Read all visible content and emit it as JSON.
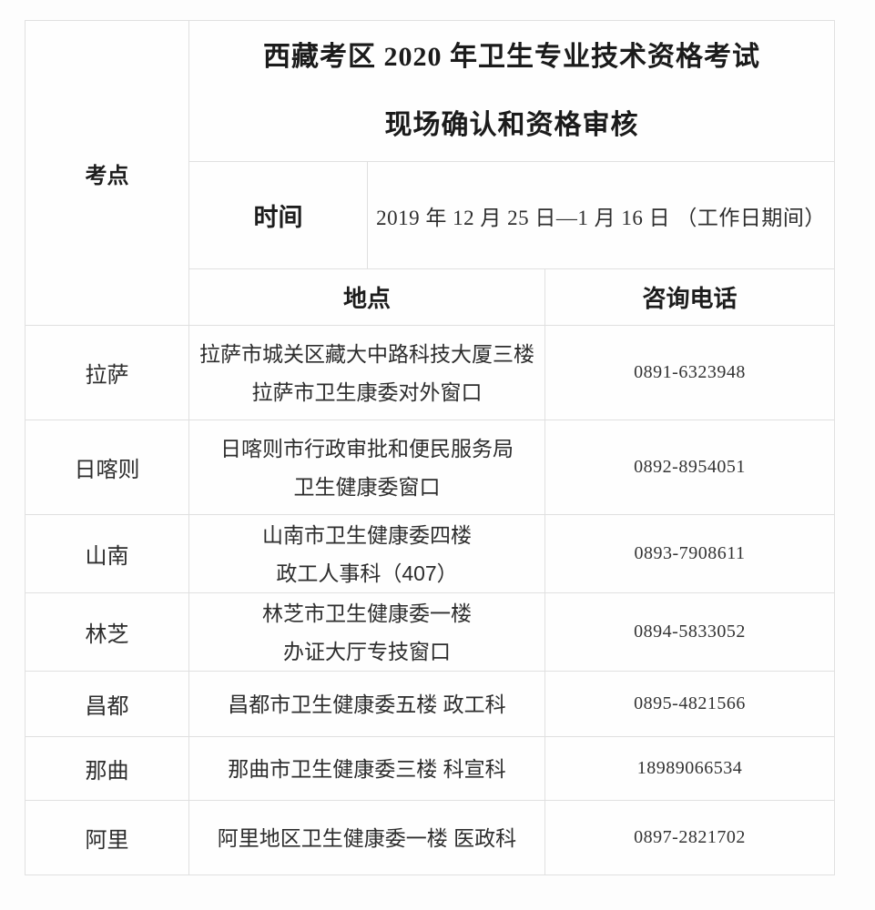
{
  "table": {
    "corner_header": "考点",
    "title_line1": "西藏考区 2020 年卫生专业技术资格考试",
    "title_line2": "现场确认和资格审核",
    "time_label": "时间",
    "time_value": "2019 年 12 月 25 日—1 月 16 日 （工作日期间）",
    "location_header": "地点",
    "phone_header": "咨询电话",
    "rows": [
      {
        "site": "拉萨",
        "address_lines": [
          "拉萨市城关区藏大中路科技大厦三楼",
          "拉萨市卫生康委对外窗口"
        ],
        "phone": "0891-6323948"
      },
      {
        "site": "日喀则",
        "address_lines": [
          "日喀则市行政审批和便民服务局",
          "卫生健康委窗口"
        ],
        "phone": "0892-8954051"
      },
      {
        "site": "山南",
        "address_lines": [
          "山南市卫生健康委四楼",
          "政工人事科（407）"
        ],
        "phone": "0893-7908611"
      },
      {
        "site": "林芝",
        "address_lines": [
          "林芝市卫生健康委一楼",
          "办证大厅专技窗口"
        ],
        "phone": "0894-5833052"
      },
      {
        "site": "昌都",
        "address_lines": [
          "昌都市卫生健康委五楼 政工科"
        ],
        "phone": "0895-4821566"
      },
      {
        "site": "那曲",
        "address_lines": [
          "那曲市卫生健康委三楼 科宣科"
        ],
        "phone": "18989066534"
      },
      {
        "site": "阿里",
        "address_lines": [
          "阿里地区卫生健康委一楼 医政科"
        ],
        "phone": "0897-2821702"
      }
    ]
  }
}
